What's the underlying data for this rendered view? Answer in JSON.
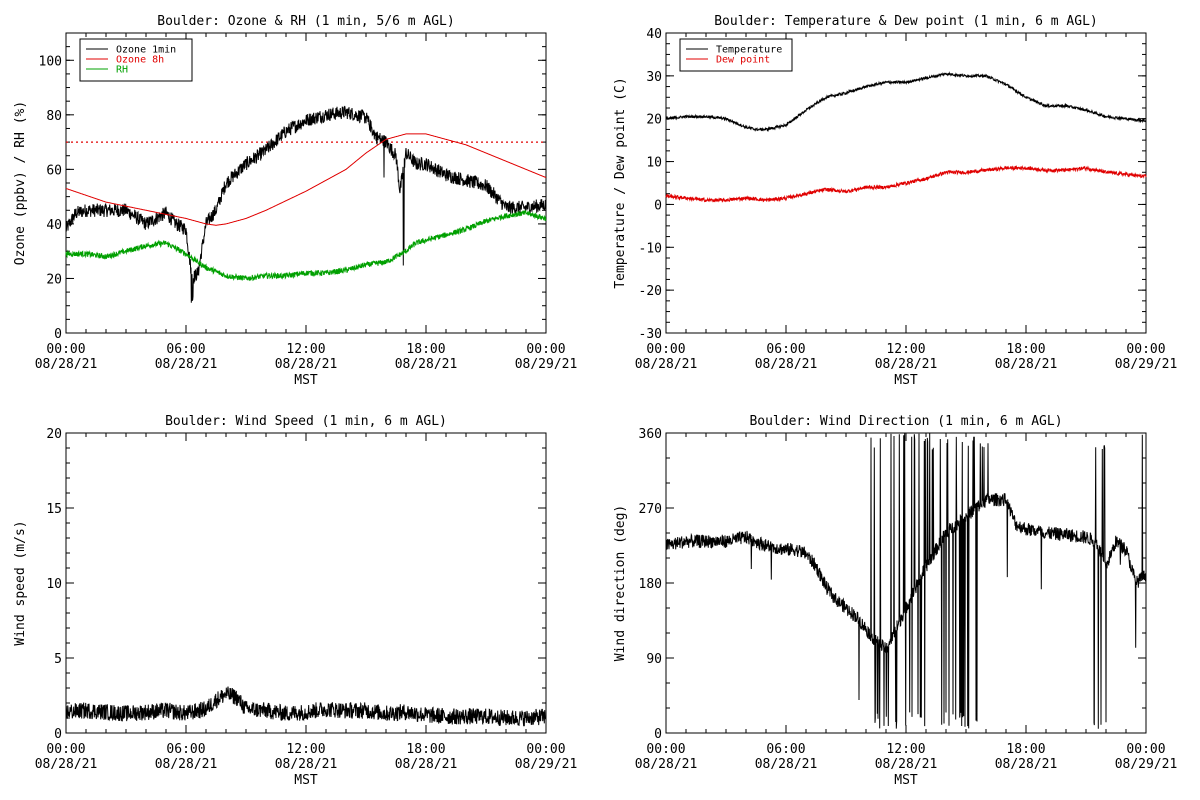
{
  "colors": {
    "ozone_1min": "#000000",
    "ozone_8h": "#e00000",
    "rh": "#00a000",
    "temperature": "#000000",
    "dew_point": "#e00000",
    "wind_speed": "#000000",
    "wind_direction": "#000000",
    "threshold": "#e00000"
  },
  "x_ticks": [
    {
      "time": "00:00",
      "date": "08/28/21",
      "h": 0
    },
    {
      "time": "06:00",
      "date": "08/28/21",
      "h": 6
    },
    {
      "time": "12:00",
      "date": "08/28/21",
      "h": 12
    },
    {
      "time": "18:00",
      "date": "08/28/21",
      "h": 18
    },
    {
      "time": "00:00",
      "date": "08/29/21",
      "h": 24
    }
  ],
  "x_minor_step_hours": 1,
  "x_label": "MST",
  "chart_data": [
    {
      "type": "line",
      "title": "Boulder: Ozone & RH (1 min, 5/6 m AGL)",
      "ylabel": "Ozone (ppbv) / RH (%)",
      "xlabel": "MST",
      "xlim": [
        0,
        24
      ],
      "ylim": [
        0,
        110
      ],
      "yticks": [
        0,
        20,
        40,
        60,
        80,
        100
      ],
      "legend": {
        "position": "top-left",
        "entries": [
          "Ozone 1min",
          "Ozone 8h",
          "RH"
        ]
      },
      "threshold": 70,
      "series": [
        {
          "name": "Ozone 1min",
          "color_key": "ozone_1min",
          "noise": 2.5,
          "x": [
            0,
            0.5,
            1,
            2,
            3,
            4,
            5,
            5.5,
            6,
            6.3,
            6.6,
            7,
            7.5,
            8,
            9,
            10,
            11,
            12,
            13,
            14,
            15,
            15.5,
            16,
            16.5,
            16.7,
            17,
            17.5,
            18,
            19,
            20,
            21,
            22,
            23,
            24
          ],
          "y": [
            38,
            44,
            45,
            45,
            45,
            40,
            44,
            40,
            38,
            20,
            22,
            40,
            45,
            55,
            62,
            67,
            74,
            78,
            80,
            81,
            79,
            72,
            70,
            65,
            52,
            66,
            62,
            62,
            58,
            56,
            54,
            46,
            46,
            47
          ]
        },
        {
          "name": "Ozone 8h",
          "color_key": "ozone_8h",
          "noise": 0,
          "x": [
            0,
            2,
            4,
            6,
            7,
            7.5,
            8,
            9,
            10,
            12,
            14,
            15,
            16,
            17,
            18,
            19,
            20,
            21,
            22,
            23,
            24
          ],
          "y": [
            53,
            48,
            45,
            42,
            40,
            39.5,
            40,
            42,
            45,
            52,
            60,
            66,
            71,
            73,
            73,
            71,
            69,
            66,
            63,
            60,
            57
          ]
        },
        {
          "name": "RH",
          "color_key": "rh",
          "noise": 1,
          "x": [
            0,
            1,
            2,
            3,
            4,
            5,
            6,
            7,
            8,
            9,
            10,
            11,
            12,
            13,
            14,
            15,
            16,
            17,
            17.5,
            18,
            19,
            20,
            21,
            22,
            23,
            24
          ],
          "y": [
            29,
            29,
            28,
            30,
            32,
            33,
            29,
            24,
            21,
            20,
            21,
            21,
            22,
            22,
            23,
            25,
            26,
            30,
            33,
            34,
            36,
            38,
            41,
            43,
            44,
            42
          ]
        }
      ]
    },
    {
      "type": "line",
      "title": "Boulder: Temperature & Dew point (1 min, 6 m AGL)",
      "ylabel": "Temperature / Dew point (C)",
      "xlabel": "MST",
      "xlim": [
        0,
        24
      ],
      "ylim": [
        -30,
        40
      ],
      "yticks": [
        -30,
        -20,
        -10,
        0,
        10,
        20,
        30,
        40
      ],
      "legend": {
        "position": "top-left",
        "entries": [
          "Temperature",
          "Dew point"
        ]
      },
      "series": [
        {
          "name": "Temperature",
          "color_key": "temperature",
          "noise": 0.3,
          "x": [
            0,
            1,
            2,
            3,
            4,
            4.5,
            5,
            6,
            7,
            8,
            9,
            10,
            11,
            12,
            13,
            14,
            15,
            16,
            17,
            18,
            19,
            20,
            21,
            22,
            23,
            24
          ],
          "y": [
            20,
            20.5,
            20.5,
            20,
            18,
            17.5,
            17.5,
            18.5,
            22,
            25,
            26,
            27.5,
            28.5,
            28.5,
            29.5,
            30.5,
            30,
            30,
            28,
            25,
            23,
            23,
            22,
            20.5,
            20,
            19.5
          ]
        },
        {
          "name": "Dew point",
          "color_key": "dew_point",
          "noise": 0.4,
          "x": [
            0,
            1,
            2,
            3,
            4,
            5,
            6,
            7,
            8,
            9,
            10,
            11,
            12,
            13,
            14,
            15,
            16,
            17,
            18,
            19,
            20,
            21,
            22,
            23,
            24
          ],
          "y": [
            2,
            1.5,
            1,
            1,
            1.5,
            1,
            1.5,
            2.5,
            3.5,
            3,
            4,
            4,
            5,
            6,
            7.5,
            7.5,
            8,
            8.5,
            8.5,
            8,
            8,
            8.5,
            7.5,
            7,
            6.5
          ]
        }
      ]
    },
    {
      "type": "line",
      "title": "Boulder: Wind Speed (1 min, 6 m AGL)",
      "ylabel": "Wind speed (m/s)",
      "xlabel": "MST",
      "xlim": [
        0,
        24
      ],
      "ylim": [
        0,
        20
      ],
      "yticks": [
        0,
        5,
        10,
        15,
        20
      ],
      "series": [
        {
          "name": "Wind speed",
          "color_key": "wind_speed",
          "noise": 0.55,
          "x": [
            0,
            1,
            2,
            3,
            4,
            5,
            6,
            7,
            7.5,
            8,
            8.5,
            9,
            10,
            11,
            12,
            13,
            14,
            15,
            16,
            17,
            18,
            19,
            20,
            21,
            22,
            23,
            24
          ],
          "y": [
            1.4,
            1.5,
            1.4,
            1.3,
            1.4,
            1.5,
            1.3,
            1.6,
            2.2,
            2.6,
            2.4,
            1.6,
            1.5,
            1.3,
            1.4,
            1.6,
            1.5,
            1.5,
            1.3,
            1.4,
            1.2,
            1.1,
            1.1,
            1.1,
            1.0,
            1.0,
            1.1
          ]
        }
      ]
    },
    {
      "type": "line",
      "title": "Boulder: Wind Direction (1 min, 6 m AGL)",
      "ylabel": "Wind direction (deg)",
      "xlabel": "MST",
      "xlim": [
        0,
        24
      ],
      "ylim": [
        0,
        360
      ],
      "yticks": [
        0,
        90,
        180,
        270,
        360
      ],
      "series": [
        {
          "name": "Wind direction",
          "color_key": "wind_direction",
          "noise": 8,
          "x": [
            0,
            1,
            2,
            3,
            4,
            5,
            6,
            6.5,
            7,
            7.5,
            8,
            8.5,
            9,
            9.5,
            10,
            10.5,
            11,
            12,
            13,
            14,
            15,
            16,
            17,
            17.5,
            18,
            19,
            20,
            21,
            21.5,
            22,
            22.5,
            23,
            23.5,
            24
          ],
          "y": [
            225,
            230,
            230,
            230,
            235,
            225,
            220,
            220,
            215,
            200,
            175,
            160,
            150,
            140,
            125,
            110,
            100,
            150,
            200,
            240,
            260,
            280,
            280,
            250,
            245,
            240,
            238,
            235,
            230,
            200,
            230,
            220,
            180,
            190
          ]
        }
      ],
      "spike_windows": [
        [
          10.2,
          16.2
        ],
        [
          21.3,
          22.0
        ],
        [
          23.5,
          24
        ]
      ]
    }
  ]
}
